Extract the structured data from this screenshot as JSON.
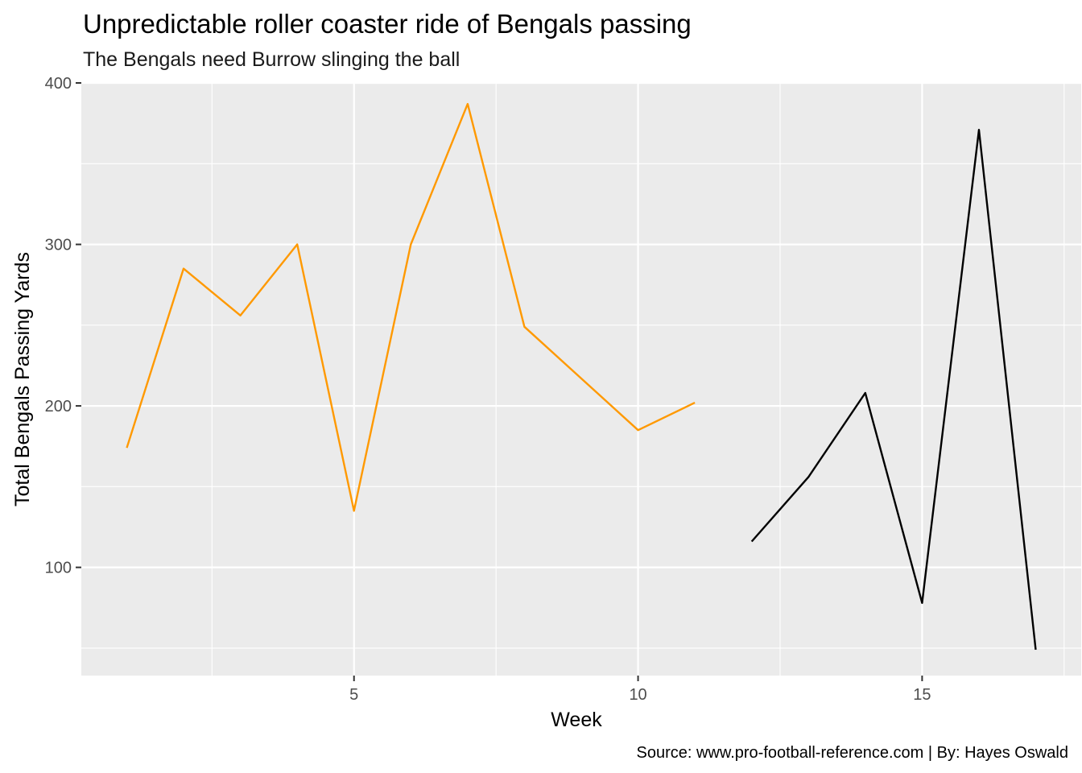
{
  "chart_data": {
    "type": "line",
    "title": "Unpredictable roller coaster ride of Bengals passing",
    "subtitle": "The Bengals need Burrow slinging the ball",
    "xlabel": "Week",
    "ylabel": "Total Bengals Passing Yards",
    "caption": "Source: www.pro-football-reference.com | By: Hayes Oswald",
    "xlim": [
      0.2,
      17.8
    ],
    "ylim": [
      33,
      400
    ],
    "x_ticks": [
      5,
      10,
      15
    ],
    "y_ticks": [
      100,
      200,
      300,
      400
    ],
    "grid": true,
    "legend": "none",
    "series": [
      {
        "color": "#FF9900",
        "x": [
          1,
          2,
          3,
          4,
          5,
          6,
          7,
          8,
          9,
          10,
          11
        ],
        "values": [
          174,
          285,
          256,
          300,
          135,
          300,
          387,
          249,
          217,
          185,
          202
        ]
      },
      {
        "color": "#000000",
        "x": [
          12,
          13,
          14,
          15,
          16,
          17
        ],
        "values": [
          116,
          156,
          208,
          78,
          371,
          49
        ]
      }
    ]
  }
}
